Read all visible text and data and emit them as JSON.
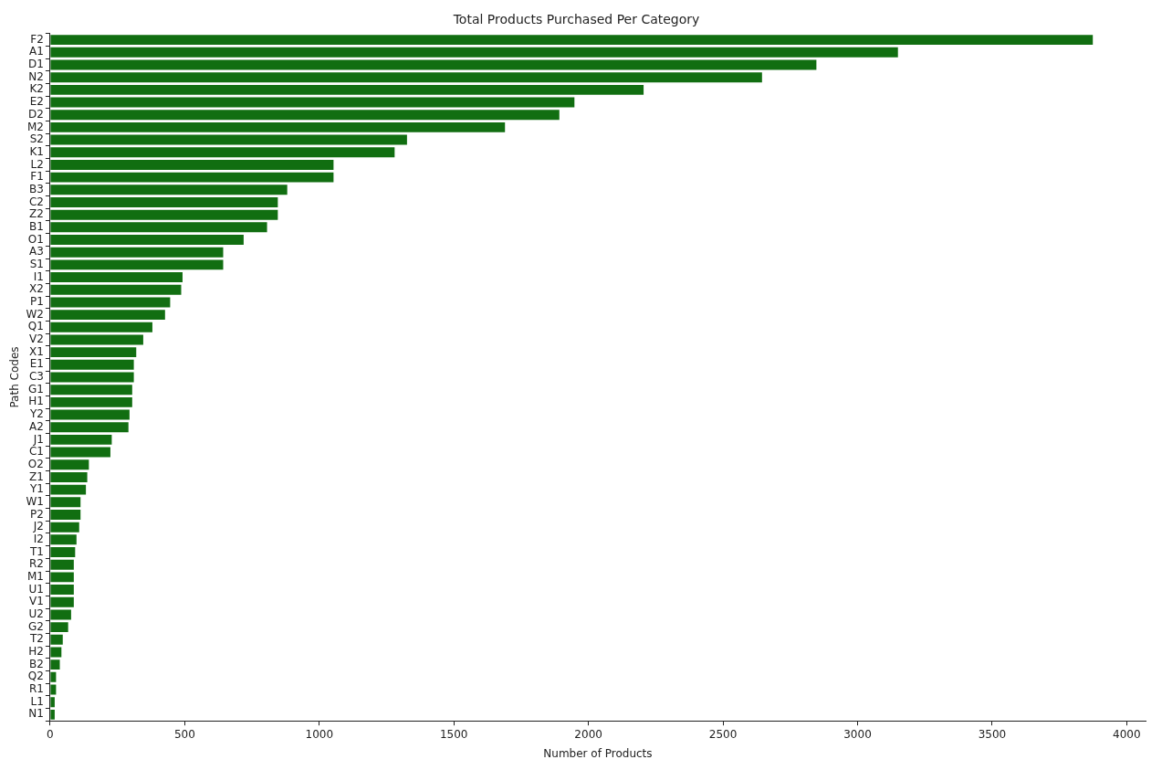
{
  "chart_data": {
    "type": "bar",
    "orientation": "horizontal",
    "title": "Total Products Purchased Per Category",
    "xlabel": "Number of Products",
    "ylabel": "Path Codes",
    "categories": [
      "F2",
      "A1",
      "D1",
      "N2",
      "K2",
      "E2",
      "D2",
      "M2",
      "S2",
      "K1",
      "L2",
      "F1",
      "B3",
      "C2",
      "Z2",
      "B1",
      "O1",
      "A3",
      "S1",
      "I1",
      "X2",
      "P1",
      "W2",
      "Q1",
      "V2",
      "X1",
      "E1",
      "C3",
      "G1",
      "H1",
      "Y2",
      "A2",
      "J1",
      "C1",
      "O2",
      "Z1",
      "Y1",
      "W1",
      "P2",
      "J2",
      "I2",
      "T1",
      "R2",
      "M1",
      "U1",
      "V1",
      "U2",
      "G2",
      "T2",
      "H2",
      "B2",
      "Q2",
      "R1",
      "L1",
      "N1"
    ],
    "values": [
      3874,
      3150,
      2847,
      2645,
      2205,
      1948,
      1892,
      1690,
      1326,
      1280,
      1053,
      1053,
      881,
      846,
      846,
      806,
      719,
      643,
      643,
      492,
      487,
      446,
      427,
      380,
      346,
      320,
      311,
      311,
      305,
      305,
      295,
      291,
      229,
      224,
      144,
      138,
      133,
      113,
      113,
      108,
      98,
      93,
      88,
      88,
      88,
      88,
      78,
      67,
      47,
      42,
      36,
      22,
      22,
      17,
      17
    ],
    "color": "#116e11",
    "xlim": [
      0,
      4070
    ],
    "xticks": [
      0,
      500,
      1000,
      1500,
      2000,
      2500,
      3000,
      3500,
      4000
    ],
    "grid": false
  }
}
